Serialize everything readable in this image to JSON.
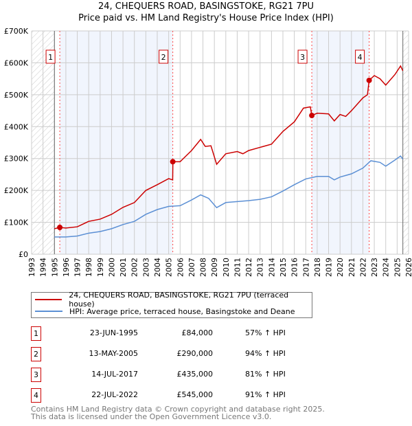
{
  "title": "24, CHEQUERS ROAD, BASINGSTOKE, RG21 7PU",
  "subtitle": "Price paid vs. HM Land Registry's House Price Index (HPI)",
  "chart_data": {
    "type": "line",
    "title": "24, CHEQUERS ROAD, BASINGSTOKE, RG21 7PU",
    "subtitle": "Price paid vs. HM Land Registry's House Price Index (HPI)",
    "xlim": [
      1993,
      2026
    ],
    "ylim": [
      0,
      700000
    ],
    "xticks": [
      "1993",
      "1994",
      "1995",
      "1996",
      "1997",
      "1998",
      "1999",
      "2000",
      "2001",
      "2002",
      "2003",
      "2004",
      "2005",
      "2006",
      "2007",
      "2008",
      "2009",
      "2010",
      "2011",
      "2012",
      "2013",
      "2014",
      "2015",
      "2016",
      "2017",
      "2018",
      "2019",
      "2020",
      "2021",
      "2022",
      "2023",
      "2024",
      "2025",
      "2026"
    ],
    "yticks": [
      {
        "v": 0,
        "label": "£0"
      },
      {
        "v": 100000,
        "label": "£100K"
      },
      {
        "v": 200000,
        "label": "£200K"
      },
      {
        "v": 300000,
        "label": "£300K"
      },
      {
        "v": 400000,
        "label": "£400K"
      },
      {
        "v": 500000,
        "label": "£500K"
      },
      {
        "v": 600000,
        "label": "£600K"
      },
      {
        "v": 700000,
        "label": "£700K"
      }
    ],
    "grid": true,
    "series": [
      {
        "name": "24, CHEQUERS ROAD, BASINGSTOKE, RG21 7PU (terraced house)",
        "color": "#cc0000",
        "x": [
          1995,
          1995.47,
          1996,
          1997,
          1998,
          1999,
          2000,
          2001,
          2002,
          2003,
          2004,
          2005,
          2005.35,
          2005.37,
          2006,
          2007,
          2007.8,
          2008.2,
          2008.7,
          2009.2,
          2010,
          2011,
          2011.5,
          2012,
          2013,
          2014,
          2015,
          2016,
          2016.8,
          2017.4,
          2017.53,
          2018,
          2019,
          2019.5,
          2020,
          2020.5,
          2021,
          2022,
          2022.4,
          2022.55,
          2023,
          2023.5,
          2024,
          2024.8,
          2025.3,
          2025.5
        ],
        "y": [
          80000,
          84000,
          82000,
          86000,
          103000,
          110000,
          125000,
          147000,
          162000,
          200000,
          218000,
          237000,
          233000,
          290000,
          290000,
          325000,
          360000,
          338000,
          340000,
          282000,
          315000,
          322000,
          315000,
          325000,
          335000,
          345000,
          385000,
          415000,
          458000,
          462000,
          435000,
          442000,
          440000,
          418000,
          438000,
          432000,
          450000,
          490000,
          500000,
          545000,
          560000,
          550000,
          530000,
          563000,
          590000,
          575000
        ]
      },
      {
        "name": "HPI: Average price, terraced house, Basingstoke and Deane",
        "color": "#5b8fd4",
        "x": [
          1995,
          1996,
          1997,
          1998,
          1999,
          2000,
          2001,
          2002,
          2003,
          2004,
          2005,
          2006,
          2007,
          2007.8,
          2008.5,
          2009.2,
          2010,
          2011,
          2012,
          2013,
          2014,
          2015,
          2016,
          2017,
          2018,
          2019,
          2019.5,
          2020,
          2021,
          2022,
          2022.7,
          2023.5,
          2024,
          2024.8,
          2025.3,
          2025.5
        ],
        "y": [
          54000,
          54000,
          57000,
          66000,
          71000,
          80000,
          93000,
          103000,
          125000,
          140000,
          150000,
          152000,
          170000,
          186000,
          175000,
          146000,
          162000,
          165000,
          168000,
          172000,
          180000,
          198000,
          218000,
          236000,
          244000,
          244000,
          233000,
          242000,
          252000,
          270000,
          293000,
          288000,
          276000,
          295000,
          308000,
          298000
        ]
      }
    ],
    "sales": [
      {
        "num": "1",
        "x": 1995.47,
        "y": 84000,
        "date": "23-JUN-1995",
        "price": "£84,000",
        "hpi": "57% ↑ HPI"
      },
      {
        "num": "2",
        "x": 2005.36,
        "y": 290000,
        "date": "13-MAY-2005",
        "price": "£290,000",
        "hpi": "94% ↑ HPI"
      },
      {
        "num": "3",
        "x": 2017.53,
        "y": 435000,
        "date": "14-JUL-2017",
        "price": "£435,000",
        "hpi": "81% ↑ HPI"
      },
      {
        "num": "4",
        "x": 2022.55,
        "y": 545000,
        "date": "22-JUL-2022",
        "price": "£545,000",
        "hpi": "91% ↑ HPI"
      }
    ],
    "data_start": 1995,
    "data_end": 2025.5
  },
  "legend": {
    "property": "24, CHEQUERS ROAD, BASINGSTOKE, RG21 7PU (terraced house)",
    "hpi": "HPI: Average price, terraced house, Basingstoke and Deane"
  },
  "footer": {
    "line1": "Contains HM Land Registry data © Crown copyright and database right 2025.",
    "line2": "This data is licensed under the Open Government Licence v3.0."
  }
}
